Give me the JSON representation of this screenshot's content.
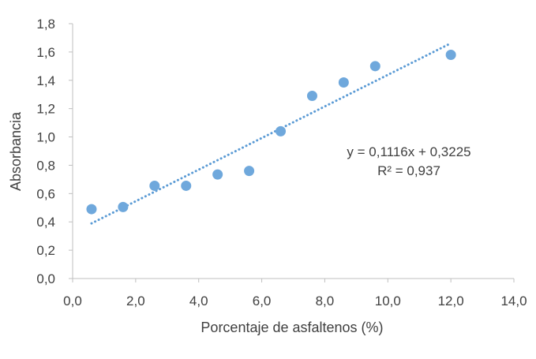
{
  "chart_data": {
    "type": "scatter",
    "xlabel": "Porcentaje de asfaltenos (%)",
    "ylabel": "Absorbancia",
    "xlim": [
      0,
      14
    ],
    "ylim": [
      0,
      1.8
    ],
    "x_ticks": [
      "0,0",
      "2,0",
      "4,0",
      "6,0",
      "8,0",
      "10,0",
      "12,0",
      "14,0"
    ],
    "y_ticks": [
      "0,0",
      "0,2",
      "0,4",
      "0,6",
      "0,8",
      "1,0",
      "1,2",
      "1,4",
      "1,6",
      "1,8"
    ],
    "series": [
      {
        "points": [
          {
            "x": 0.6,
            "y": 0.49
          },
          {
            "x": 1.6,
            "y": 0.505
          },
          {
            "x": 2.6,
            "y": 0.655
          },
          {
            "x": 3.6,
            "y": 0.655
          },
          {
            "x": 4.6,
            "y": 0.735
          },
          {
            "x": 5.6,
            "y": 0.76
          },
          {
            "x": 6.6,
            "y": 1.04
          },
          {
            "x": 7.6,
            "y": 1.29
          },
          {
            "x": 8.6,
            "y": 1.385
          },
          {
            "x": 9.6,
            "y": 1.5
          },
          {
            "x": 12.0,
            "y": 1.58
          }
        ]
      }
    ],
    "trendline": {
      "type": "linear",
      "slope": 0.1116,
      "intercept": 0.3225,
      "x_start": 0.6,
      "x_end": 12.0,
      "style": "dotted",
      "equation": "y = 0,1116x + 0,3225",
      "r_squared": "R² = 0,937"
    },
    "grid": false,
    "legend": "none",
    "colors": {
      "marker": "#6fa8dc",
      "trendline": "#5b9bd5",
      "axis": "#bfbfbf",
      "text": "#404040"
    }
  }
}
